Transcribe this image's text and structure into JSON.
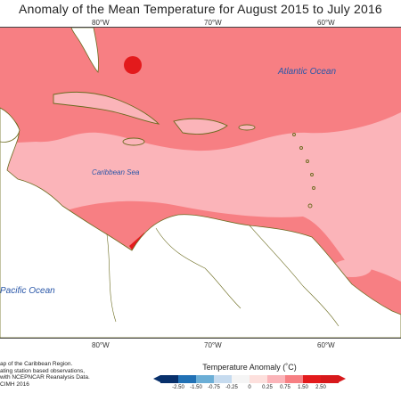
{
  "title": "Anomaly of the Mean Temperature for August 2015 to July 2016",
  "longitude_ticks": [
    "80°W",
    "70°W",
    "60°W"
  ],
  "ocean_labels": {
    "atlantic": "Atlantic Ocean",
    "caribbean": "Caribbean Sea",
    "pacific": "Pacific Ocean"
  },
  "footnote": {
    "line1": "ap of the Caribbean Region.",
    "line2": "ating station based observations,",
    "line3": "with NCEPNCAR Reanalysis Data.",
    "line4": "CIMH 2016"
  },
  "legend": {
    "title": "Temperature Anomaly (˚C)",
    "ticks": [
      "-2.50",
      "-1.50",
      "-0.75",
      "-0.25",
      "0",
      "0.25",
      "0.75",
      "1.50",
      "2.50"
    ],
    "colors": [
      "#08306b",
      "#2171b5",
      "#6baed6",
      "#c6dbef",
      "#ffffff",
      "#fde0dd",
      "#fbb4b9",
      "#f77f83",
      "#e31a1c",
      "#d7191c"
    ]
  },
  "colors": {
    "land_outline": "#6b6b1f",
    "anomaly_low": "#fbb4b9",
    "anomaly_mid": "#f77f83",
    "anomaly_high": "#e31a1c"
  }
}
